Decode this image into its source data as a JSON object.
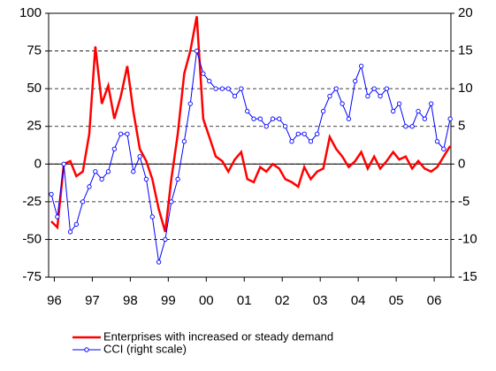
{
  "chart_data": {
    "type": "line",
    "x": [
      1995.92,
      1996.08,
      1996.25,
      1996.42,
      1996.58,
      1996.75,
      1996.92,
      1997.08,
      1997.25,
      1997.42,
      1997.58,
      1997.75,
      1997.92,
      1998.08,
      1998.25,
      1998.42,
      1998.58,
      1998.75,
      1998.92,
      1999.08,
      1999.25,
      1999.42,
      1999.58,
      1999.75,
      1999.92,
      2000.08,
      2000.25,
      2000.42,
      2000.58,
      2000.75,
      2000.92,
      2001.08,
      2001.25,
      2001.42,
      2001.58,
      2001.75,
      2001.92,
      2002.08,
      2002.25,
      2002.42,
      2002.58,
      2002.75,
      2002.92,
      2003.08,
      2003.25,
      2003.42,
      2003.58,
      2003.75,
      2003.92,
      2004.08,
      2004.25,
      2004.42,
      2004.58,
      2004.75,
      2004.92,
      2005.08,
      2005.25,
      2005.42,
      2005.58,
      2005.75,
      2005.92,
      2006.08,
      2006.25,
      2006.42
    ],
    "series": [
      {
        "name": "Enterprises with increased or steady demand",
        "color": "#ff0000",
        "axis": "y",
        "values": [
          -38,
          -42,
          0,
          2,
          -8,
          -5,
          20,
          78,
          40,
          52,
          30,
          45,
          65,
          35,
          10,
          2,
          -10,
          -30,
          -45,
          -10,
          20,
          60,
          75,
          98,
          30,
          18,
          5,
          2,
          -5,
          3,
          8,
          -10,
          -12,
          -2,
          -5,
          0,
          -3,
          -10,
          -12,
          -15,
          -2,
          -10,
          -5,
          -3,
          18,
          10,
          5,
          -2,
          2,
          8,
          -3,
          5,
          -3,
          2,
          8,
          3,
          5,
          -3,
          2,
          -3,
          -5,
          -2,
          5,
          12
        ]
      },
      {
        "name": "CCI (right scale)",
        "color": "#0000ff",
        "axis": "y2",
        "values": [
          -4,
          -7,
          0,
          -9,
          -8,
          -5,
          -3,
          -1,
          -2,
          -1,
          2,
          4,
          4,
          -1,
          1,
          -2,
          -7,
          -13,
          -10,
          -5,
          -2,
          3,
          8,
          15,
          12,
          11,
          10,
          10,
          10,
          9,
          10,
          7,
          6,
          6,
          5,
          6,
          6,
          5,
          3,
          4,
          4,
          3,
          4,
          7,
          9,
          10,
          8,
          6,
          11,
          13,
          9,
          10,
          9,
          10,
          7,
          8,
          5,
          5,
          7,
          6,
          8,
          3,
          2,
          6
        ]
      }
    ],
    "xlim": [
      1995.85,
      2006.44
    ],
    "xticks": [
      {
        "value": 1996,
        "label": "96"
      },
      {
        "value": 1997,
        "label": "97"
      },
      {
        "value": 1998,
        "label": "98"
      },
      {
        "value": 1999,
        "label": "99"
      },
      {
        "value": 2000,
        "label": "00"
      },
      {
        "value": 2001,
        "label": "01"
      },
      {
        "value": 2002,
        "label": "02"
      },
      {
        "value": 2003,
        "label": "03"
      },
      {
        "value": 2004,
        "label": "04"
      },
      {
        "value": 2005,
        "label": "05"
      },
      {
        "value": 2006,
        "label": "06"
      }
    ],
    "ylim": [
      -75,
      100
    ],
    "yticks": [
      -75,
      -50,
      -25,
      0,
      25,
      50,
      75,
      100
    ],
    "y2lim": [
      -15,
      20
    ],
    "y2ticks": [
      -15,
      -10,
      -5,
      0,
      5,
      10,
      15,
      20
    ],
    "grid": true,
    "legend": "bottom"
  }
}
